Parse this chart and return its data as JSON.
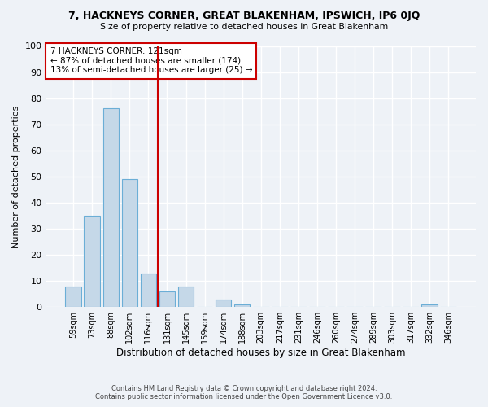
{
  "title": "7, HACKNEYS CORNER, GREAT BLAKENHAM, IPSWICH, IP6 0JQ",
  "subtitle": "Size of property relative to detached houses in Great Blakenham",
  "xlabel": "Distribution of detached houses by size in Great Blakenham",
  "ylabel": "Number of detached properties",
  "bin_labels": [
    "59sqm",
    "73sqm",
    "88sqm",
    "102sqm",
    "116sqm",
    "131sqm",
    "145sqm",
    "159sqm",
    "174sqm",
    "188sqm",
    "203sqm",
    "217sqm",
    "231sqm",
    "246sqm",
    "260sqm",
    "274sqm",
    "289sqm",
    "303sqm",
    "317sqm",
    "332sqm",
    "346sqm"
  ],
  "bar_values": [
    8,
    35,
    76,
    49,
    13,
    6,
    8,
    0,
    3,
    1,
    0,
    0,
    0,
    0,
    0,
    0,
    0,
    0,
    0,
    1,
    0
  ],
  "bar_color": "#c5d8e8",
  "bar_edge_color": "#6baed6",
  "vline_x": 4.5,
  "vline_color": "#cc0000",
  "annotation_title": "7 HACKNEYS CORNER: 121sqm",
  "annotation_line1": "← 87% of detached houses are smaller (174)",
  "annotation_line2": "13% of semi-detached houses are larger (25) →",
  "annotation_box_color": "#ffffff",
  "annotation_box_edge_color": "#cc0000",
  "ylim": [
    0,
    100
  ],
  "yticks": [
    0,
    10,
    20,
    30,
    40,
    50,
    60,
    70,
    80,
    90,
    100
  ],
  "background_color": "#eef2f7",
  "grid_color": "#ffffff",
  "footer_line1": "Contains HM Land Registry data © Crown copyright and database right 2024.",
  "footer_line2": "Contains public sector information licensed under the Open Government Licence v3.0."
}
